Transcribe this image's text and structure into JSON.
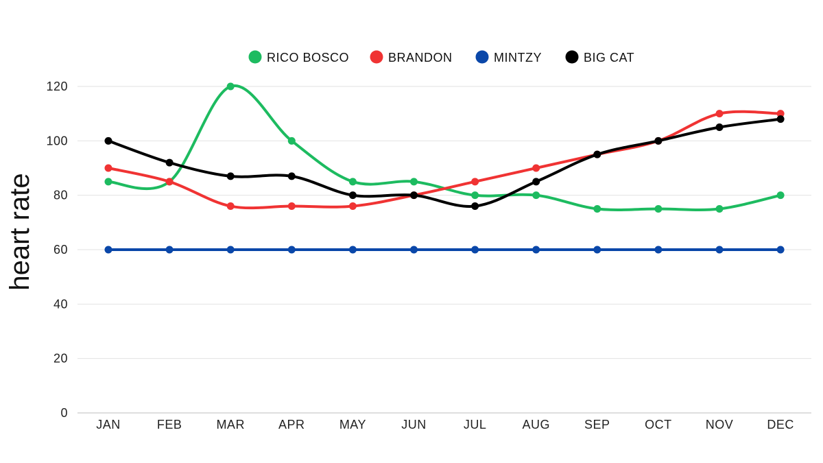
{
  "chart_data": {
    "type": "line",
    "ylabel": "heart rate",
    "xlabel": "",
    "categories": [
      "JAN",
      "FEB",
      "MAR",
      "APR",
      "MAY",
      "JUN",
      "JUL",
      "AUG",
      "SEP",
      "OCT",
      "NOV",
      "DEC"
    ],
    "ylim": [
      0,
      120
    ],
    "yticks": [
      "0",
      "20",
      "40",
      "60",
      "80",
      "100",
      "120"
    ],
    "grid": true,
    "legend_position": "top-center",
    "smooth": true,
    "series": [
      {
        "name": "RICO BOSCO",
        "color": "#1dbb60",
        "values": [
          85,
          85,
          120,
          100,
          85,
          85,
          80,
          80,
          75,
          75,
          75,
          80
        ]
      },
      {
        "name": "BRANDON",
        "color": "#f03333",
        "values": [
          90,
          85,
          76,
          76,
          76,
          80,
          85,
          90,
          95,
          100,
          110,
          110
        ]
      },
      {
        "name": "MINTZY",
        "color": "#0a47a9",
        "values": [
          60,
          60,
          60,
          60,
          60,
          60,
          60,
          60,
          60,
          60,
          60,
          60
        ]
      },
      {
        "name": "BIG CAT",
        "color": "#000000",
        "values": [
          100,
          92,
          87,
          87,
          80,
          80,
          76,
          85,
          95,
          100,
          105,
          108
        ]
      }
    ]
  }
}
